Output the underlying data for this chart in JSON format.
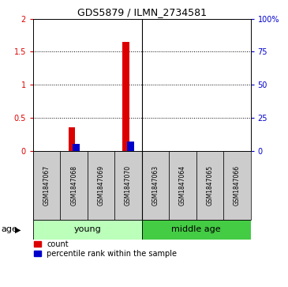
{
  "title": "GDS5879 / ILMN_2734581",
  "samples": [
    "GSM1847067",
    "GSM1847068",
    "GSM1847069",
    "GSM1847070",
    "GSM1847063",
    "GSM1847064",
    "GSM1847065",
    "GSM1847066"
  ],
  "count_values": [
    0,
    0.35,
    0,
    1.65,
    0,
    0,
    0,
    0
  ],
  "percentile_values": [
    0,
    5,
    0,
    7,
    0,
    0,
    0,
    0
  ],
  "ylim_left": [
    0,
    2
  ],
  "ylim_right": [
    0,
    100
  ],
  "yticks_left": [
    0,
    0.5,
    1.0,
    1.5,
    2.0
  ],
  "yticks_right": [
    0,
    25,
    50,
    75,
    100
  ],
  "ytick_labels_left": [
    "0",
    "0.5",
    "1",
    "1.5",
    "2"
  ],
  "ytick_labels_right": [
    "0",
    "25",
    "50",
    "75",
    "100%"
  ],
  "count_color": "#DD0000",
  "percentile_color": "#0000CC",
  "background_color": "#ffffff",
  "sample_box_color": "#cccccc",
  "young_color": "#bbffbb",
  "middle_age_color": "#44cc44",
  "legend_count": "count",
  "legend_percentile": "percentile rank within the sample",
  "title_fontsize": 9,
  "tick_fontsize": 7,
  "sample_fontsize": 5.5,
  "group_fontsize": 8,
  "legend_fontsize": 7,
  "age_fontsize": 8
}
